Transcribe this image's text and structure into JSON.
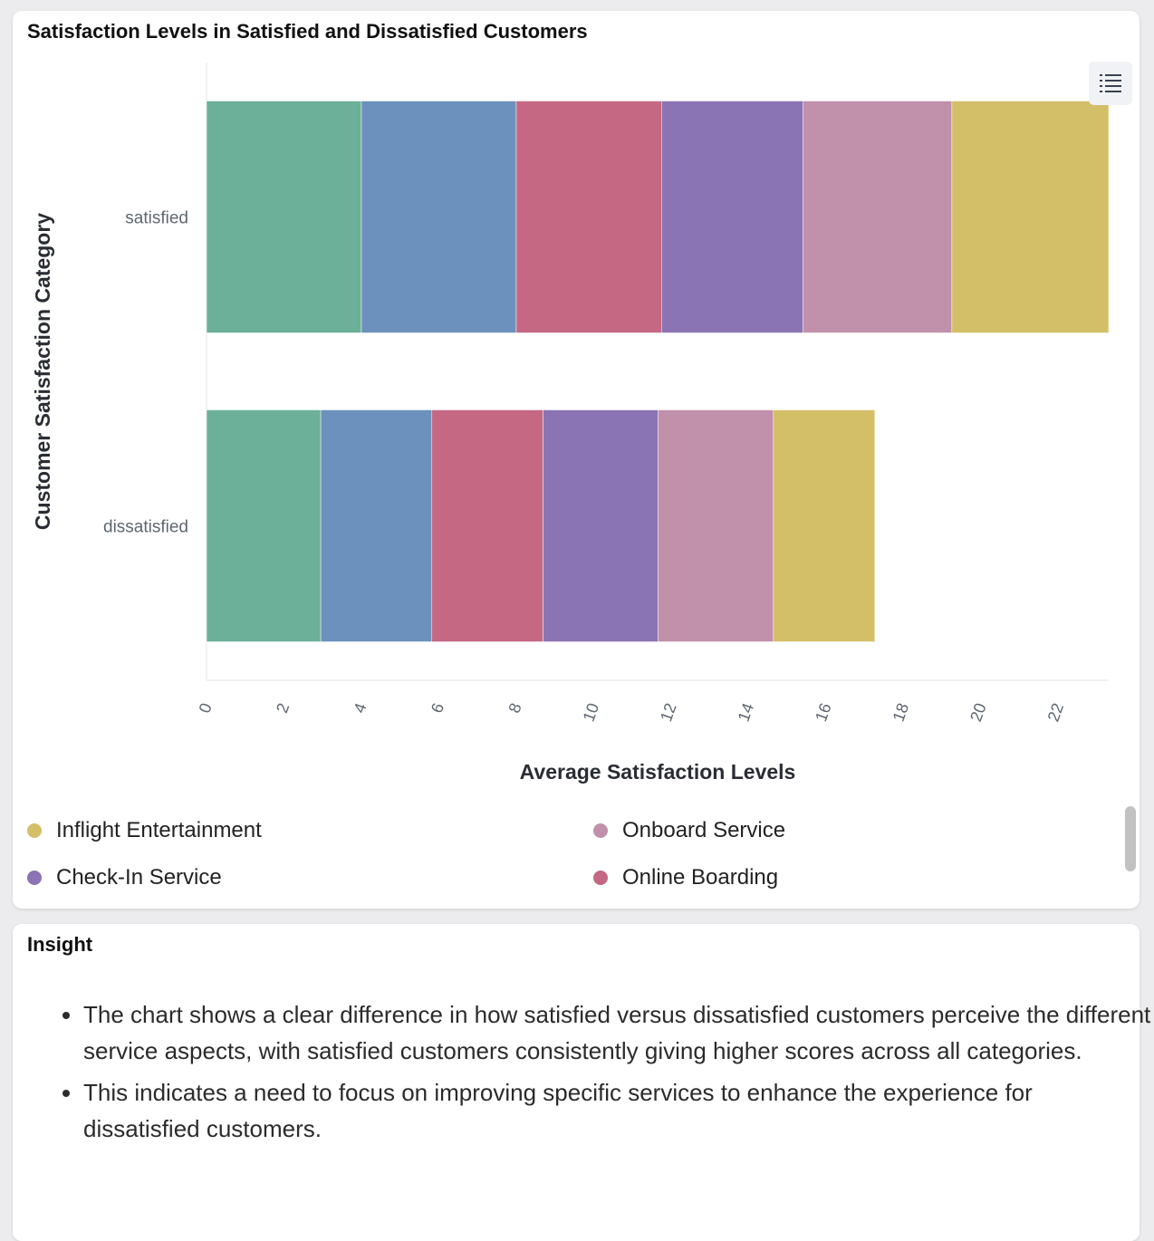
{
  "chart_card": {
    "title": "Satisfaction Levels in Satisfied and Dissatisfied Customers"
  },
  "chart_data": {
    "type": "bar",
    "orientation": "horizontal",
    "stacked": true,
    "title": "Satisfaction Levels in Satisfied and Dissatisfied Customers",
    "xlabel": "Average Satisfaction Levels",
    "ylabel": "Customer Satisfaction Category",
    "categories": [
      "satisfied",
      "dissatisfied"
    ],
    "xlim": [
      0,
      23.3
    ],
    "x_ticks": [
      0,
      2,
      4,
      6,
      8,
      10,
      12,
      14,
      16,
      18,
      20,
      22
    ],
    "series": [
      {
        "values": [
          4.0,
          2.95
        ],
        "color": "#6cb09a"
      },
      {
        "values": [
          4.0,
          2.87
        ],
        "color": "#6c91bd"
      },
      {
        "values": [
          3.75,
          2.87
        ],
        "color": "#c56883"
      },
      {
        "values": [
          3.65,
          2.97
        ],
        "color": "#8b74b3"
      },
      {
        "name": "Onboard Service",
        "values": [
          3.85,
          2.98
        ],
        "color": "#c190ab"
      },
      {
        "name": "Inflight Entertainment",
        "values": [
          4.05,
          2.62
        ],
        "color": "#d4bf69"
      }
    ],
    "legend_placement": "bottom"
  },
  "legend": [
    {
      "label": "Inflight Entertainment",
      "color": "#d4bf69"
    },
    {
      "label": "Onboard Service",
      "color": "#c190ab"
    },
    {
      "label": "Check-In Service",
      "color": "#8b74b3"
    },
    {
      "label": "Online Boarding",
      "color": "#c56883"
    }
  ],
  "insight": {
    "title": "Insight",
    "items": [
      "The chart shows a clear difference in how satisfied versus dissatisfied customers perceive the different service aspects, with satisfied customers consistently giving higher scores across all categories.",
      "This indicates a need to focus on improving specific services to enhance the experience for dissatisfied customers."
    ]
  },
  "icons": {
    "menu": "list-menu-icon"
  }
}
